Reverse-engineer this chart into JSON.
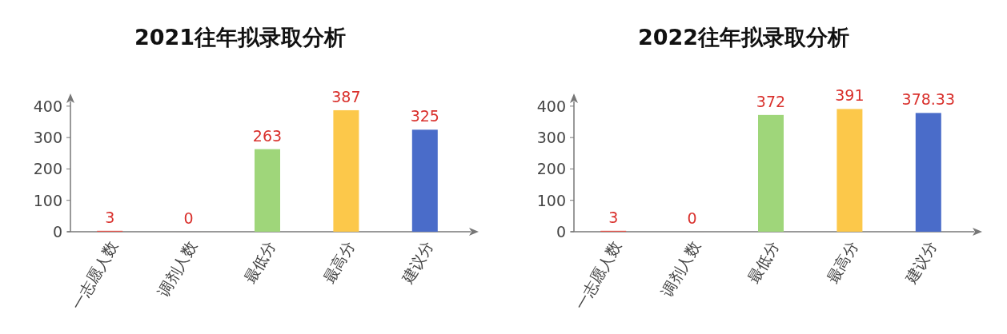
{
  "chart_data": [
    {
      "type": "bar",
      "title": "2021往年拟录取分析",
      "categories": [
        "一志愿人数",
        "调剂人数",
        "最低分",
        "最高分",
        "建议分"
      ],
      "values": [
        3,
        0,
        263,
        387,
        325
      ],
      "colors": [
        "#e8534a",
        "#e8534a",
        "#9fd67a",
        "#fcc84a",
        "#4a6cc9"
      ],
      "ylim": [
        0,
        420
      ],
      "yticks": [
        0,
        100,
        200,
        300,
        400
      ],
      "data_labels": true,
      "grid": false
    },
    {
      "type": "bar",
      "title": "2022往年拟录取分析",
      "categories": [
        "一志愿人数",
        "调剂人数",
        "最低分",
        "最高分",
        "建议分"
      ],
      "values": [
        3,
        0,
        372,
        391,
        378.33
      ],
      "colors": [
        "#e8534a",
        "#e8534a",
        "#9fd67a",
        "#fcc84a",
        "#4a6cc9"
      ],
      "ylim": [
        0,
        420
      ],
      "yticks": [
        0,
        100,
        200,
        300,
        400
      ],
      "data_labels": true,
      "grid": false
    }
  ]
}
